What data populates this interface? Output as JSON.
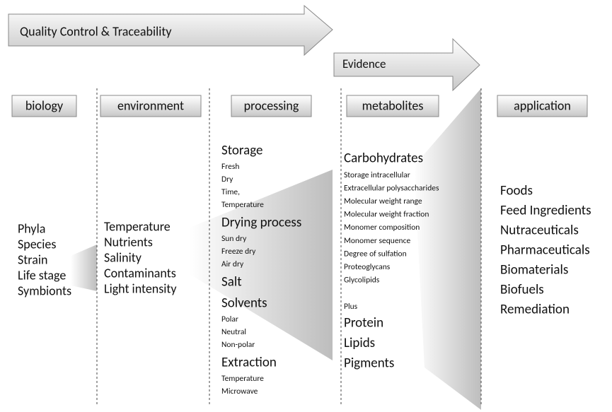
{
  "arrows": {
    "main": "Quality Control & Traceability",
    "evidence": "Evidence"
  },
  "columns": {
    "biology": {
      "header": "biology",
      "items": [
        "Phyla",
        "Species",
        "Strain",
        "Life stage",
        "Symbionts"
      ]
    },
    "environment": {
      "header": "environment",
      "items": [
        "Temperature",
        "Nutrients",
        "Salinity",
        "Contaminants",
        "Light intensity"
      ]
    },
    "processing": {
      "header": "processing",
      "groups": [
        {
          "title": "Storage",
          "items": [
            "Fresh",
            "Dry",
            "Time,",
            "Temperature"
          ]
        },
        {
          "title": "Drying process",
          "items": [
            "Sun dry",
            "Freeze dry",
            "Air dry"
          ]
        },
        {
          "title": "Salt",
          "items": []
        },
        {
          "title": "Solvents",
          "items": [
            "Polar",
            "Neutral",
            "Non-polar"
          ]
        },
        {
          "title": "Extraction",
          "items": [
            "Temperature",
            "Microwave"
          ]
        }
      ]
    },
    "metabolites": {
      "header": "metabolites",
      "title": "Carbohydrates",
      "items": [
        "Storage intracellular",
        "Extracellular polysaccharides",
        "Molecular weight range",
        "Molecular weight fraction",
        "Monomer  composition",
        "Monomer  sequence",
        "Degree of sulfation",
        "Proteoglycans",
        "Glycolipids"
      ],
      "plus": "Plus",
      "more": [
        "Protein",
        "Lipids",
        "Pigments"
      ]
    },
    "application": {
      "header": "application",
      "items": [
        "Foods",
        "Feed Ingredients",
        "Nutraceuticals",
        "Pharmaceuticals",
        "Biomaterials",
        "Biofuels",
        "Remediation"
      ]
    }
  }
}
